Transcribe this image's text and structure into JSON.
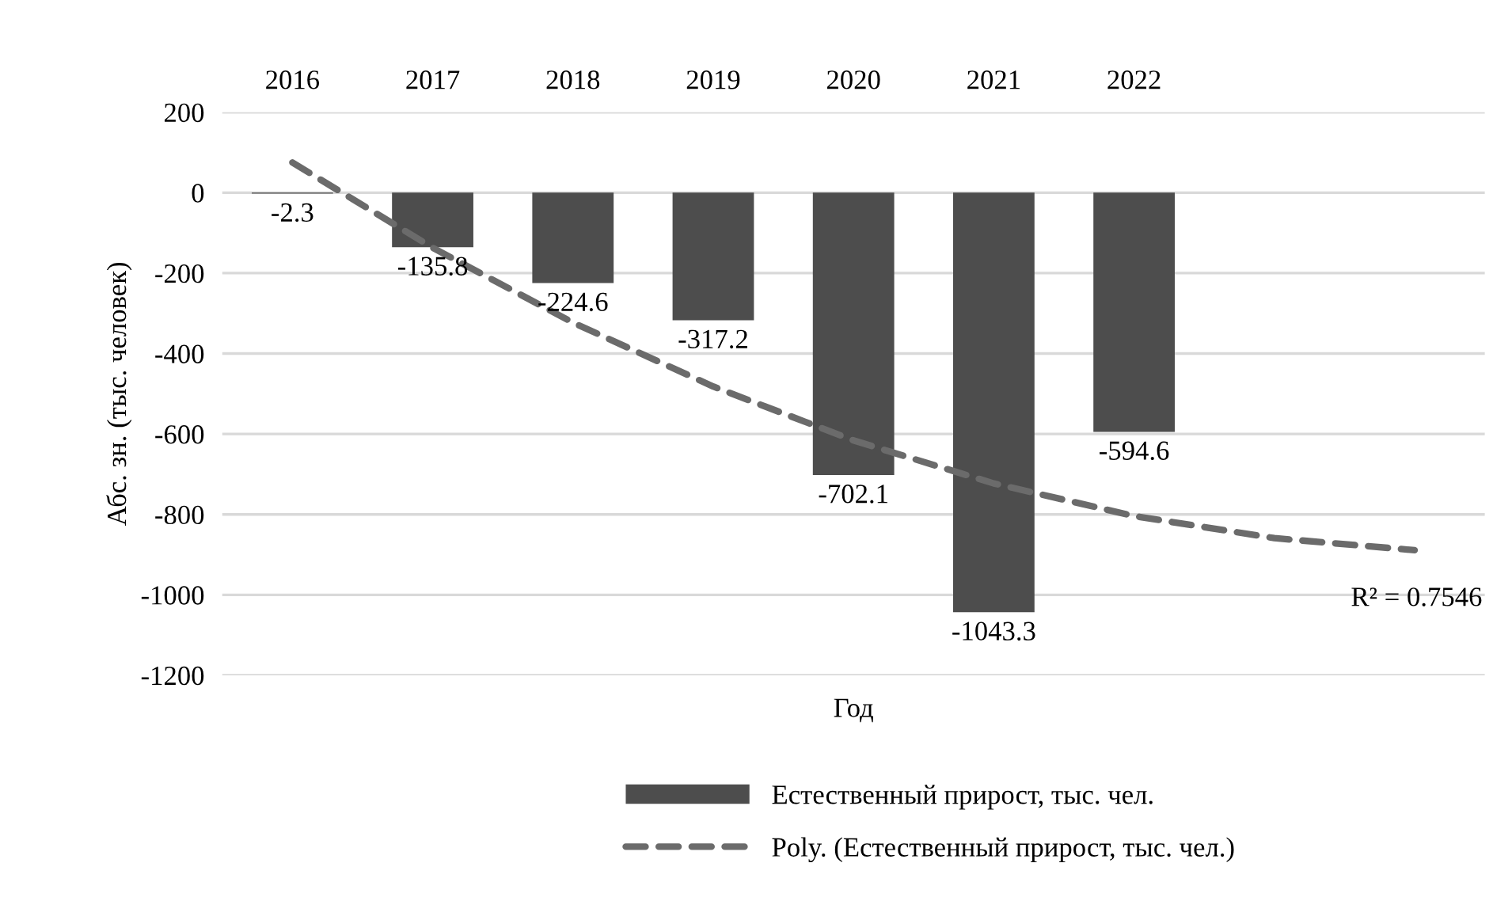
{
  "chart_data": {
    "type": "bar",
    "xlabel": "Год",
    "ylabel": "Абс. зн. (тыс. человек)",
    "categories": [
      "2016",
      "2017",
      "2018",
      "2019",
      "2020",
      "2021",
      "2022",
      null,
      null
    ],
    "series": [
      {
        "name": "Естественный прирост, тыс. чел.",
        "color": "#4d4d4d",
        "values": [
          -2.3,
          -135.8,
          -224.6,
          -317.2,
          -702.1,
          -1043.3,
          -594.6,
          null,
          null
        ],
        "value_labels": [
          "-2.3",
          "-135.8",
          "-224.6",
          "-317.2",
          "-702.1",
          "-1043.3",
          "-594.6",
          null,
          null
        ]
      },
      {
        "name": "Poly. (Естественный прирост, тыс. чел.)",
        "type": "line",
        "color": "#6b6b6b",
        "line_style": "dashed",
        "marker": "none",
        "values": [
          75,
          -137,
          -323,
          -482,
          -616,
          -723,
          -804,
          -859,
          -889
        ]
      }
    ],
    "ylim": [
      -1200,
      200
    ],
    "yticks": [
      -1200,
      -1000,
      -800,
      -600,
      -400,
      -200,
      0,
      200
    ],
    "grid": "y",
    "legend": "bottom",
    "annotations": [
      "R² = 0.7546"
    ]
  }
}
